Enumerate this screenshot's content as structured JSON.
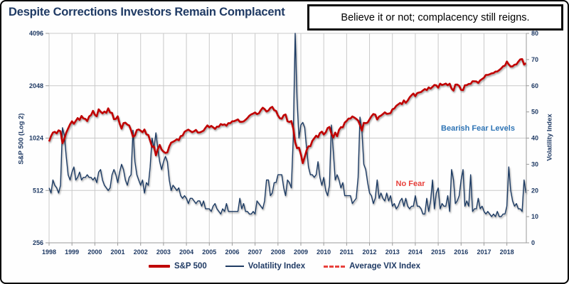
{
  "header": {
    "title": "Despite Corrections Investors Remain Complacent",
    "callout": "Believe it or not; complacency still reigns."
  },
  "annotations": {
    "bearish_label": "Bearish Fear Levels",
    "no_fear_label": "No Fear"
  },
  "legend": {
    "sp500": "S&P 500",
    "volatility": "Volatility Index",
    "average_vix": "Average VIX Index"
  },
  "colors": {
    "sp500_line": "#C00000",
    "vix_line": "#1F3B63",
    "bearish_dash": "#2E74B5",
    "avg_vix_dash": "#E8413C",
    "navy_text": "#1F3A64",
    "gridline": "#C9C9C9"
  },
  "chart_data": {
    "type": "line",
    "title": "Despite Corrections Investors Remain Complacent",
    "resolution": "monthly",
    "x_start_year": 1998,
    "x_end": 2018.85,
    "x_tick_labels": [
      "1998",
      "1999",
      "2000",
      "2001",
      "2002",
      "2003",
      "2004",
      "2005",
      "2006",
      "2007",
      "2008",
      "2009",
      "2010",
      "2011",
      "2012",
      "2013",
      "2014",
      "2015",
      "2016",
      "2017",
      "2018"
    ],
    "grid": true,
    "legend_position": "bottom",
    "left_axis": {
      "label": "S&P 500 (Log 2)",
      "scale": "log2",
      "ticks": [
        4096,
        2048,
        1024,
        512,
        256
      ],
      "range": [
        256,
        4096
      ]
    },
    "right_axis": {
      "label": "Volatility Index",
      "ticks": [
        0,
        10,
        20,
        30,
        40,
        50,
        60,
        70,
        80
      ],
      "range": [
        0,
        80
      ]
    },
    "series": [
      {
        "name": "S&P 500",
        "axis": "left",
        "color": "#C00000",
        "width": 2.6,
        "values": [
          980,
          1049,
          1102,
          1112,
          1091,
          1134,
          1121,
          957,
          1017,
          1099,
          1164,
          1229,
          1280,
          1238,
          1286,
          1335,
          1302,
          1373,
          1329,
          1320,
          1283,
          1363,
          1389,
          1469,
          1394,
          1366,
          1499,
          1452,
          1421,
          1455,
          1431,
          1518,
          1437,
          1429,
          1315,
          1320,
          1366,
          1240,
          1160,
          1249,
          1256,
          1224,
          1211,
          1134,
          1041,
          1060,
          1139,
          1148,
          1130,
          1107,
          1147,
          1077,
          1067,
          990,
          912,
          916,
          815,
          886,
          936,
          880,
          856,
          841,
          848,
          917,
          964,
          975,
          990,
          1008,
          996,
          1051,
          1058,
          1112,
          1131,
          1145,
          1126,
          1107,
          1121,
          1141,
          1102,
          1104,
          1115,
          1130,
          1174,
          1212,
          1181,
          1204,
          1181,
          1157,
          1192,
          1191,
          1234,
          1220,
          1229,
          1207,
          1249,
          1248,
          1280,
          1281,
          1295,
          1311,
          1270,
          1270,
          1277,
          1304,
          1336,
          1378,
          1401,
          1418,
          1438,
          1407,
          1421,
          1482,
          1531,
          1503,
          1455,
          1474,
          1527,
          1549,
          1481,
          1468,
          1379,
          1331,
          1323,
          1386,
          1400,
          1280,
          1267,
          1283,
          1165,
          969,
          896,
          903,
          826,
          735,
          798,
          873,
          919,
          919,
          987,
          1021,
          1057,
          1036,
          1096,
          1115,
          1074,
          1104,
          1169,
          1187,
          1089,
          1031,
          1102,
          1049,
          1141,
          1183,
          1181,
          1258,
          1286,
          1327,
          1326,
          1364,
          1345,
          1321,
          1292,
          1219,
          1131,
          1253,
          1247,
          1258,
          1312,
          1366,
          1408,
          1398,
          1310,
          1362,
          1379,
          1407,
          1441,
          1412,
          1416,
          1426,
          1498,
          1515,
          1569,
          1598,
          1631,
          1606,
          1686,
          1633,
          1682,
          1757,
          1806,
          1848,
          1783,
          1859,
          1872,
          1884,
          1924,
          1960,
          1931,
          2003,
          1972,
          2018,
          2068,
          2059,
          1995,
          2105,
          2068,
          2086,
          2107,
          2063,
          2104,
          1972,
          1920,
          2079,
          2080,
          2044,
          1940,
          1932,
          2060,
          2065,
          2097,
          2099,
          2174,
          2171,
          2168,
          2126,
          2199,
          2239,
          2279,
          2364,
          2363,
          2384,
          2412,
          2423,
          2470,
          2472,
          2519,
          2575,
          2648,
          2674,
          2824,
          2714,
          2641,
          2648,
          2705,
          2718,
          2816,
          2902,
          2914,
          2712,
          2760
        ]
      },
      {
        "name": "Volatility Index",
        "axis": "right",
        "color": "#1F3B63",
        "width": 1.4,
        "values": [
          21,
          19,
          24,
          22,
          21,
          19,
          22,
          44,
          41,
          33,
          26,
          24,
          27,
          29,
          24,
          25,
          27,
          24,
          25,
          25,
          26,
          25,
          25,
          24,
          25,
          23,
          27,
          28,
          24,
          22,
          21,
          20,
          21,
          26,
          28,
          26,
          23,
          27,
          30,
          28,
          24,
          22,
          25,
          26,
          43,
          31,
          26,
          24,
          22,
          24,
          19,
          23,
          22,
          29,
          40,
          36,
          42,
          36,
          31,
          28,
          31,
          33,
          31,
          24,
          20,
          22,
          21,
          20,
          21,
          18,
          17,
          18,
          17,
          15,
          17,
          17,
          16,
          15,
          16,
          16,
          14,
          16,
          13,
          13,
          13,
          12,
          14,
          15,
          13,
          12,
          11,
          13,
          12,
          15,
          12,
          12,
          12,
          12,
          12,
          12,
          17,
          13,
          15,
          12,
          12,
          11,
          11,
          12,
          11,
          16,
          15,
          14,
          13,
          16,
          24,
          24,
          18,
          19,
          23,
          23,
          26,
          26,
          26,
          21,
          18,
          24,
          23,
          21,
          40,
          80,
          55,
          40,
          45,
          46,
          44,
          36,
          29,
          26,
          26,
          25,
          26,
          31,
          25,
          22,
          25,
          20,
          18,
          22,
          45,
          35,
          24,
          26,
          24,
          21,
          23,
          18,
          18,
          18,
          18,
          15,
          16,
          17,
          25,
          48,
          43,
          30,
          28,
          23,
          19,
          18,
          15,
          17,
          24,
          17,
          19,
          17,
          16,
          19,
          16,
          18,
          14,
          15,
          13,
          14,
          16,
          17,
          14,
          17,
          14,
          13,
          14,
          14,
          18,
          14,
          14,
          13,
          11,
          11,
          17,
          12,
          16,
          24,
          13,
          19,
          21,
          13,
          15,
          14,
          14,
          18,
          12,
          28,
          24,
          15,
          16,
          18,
          24,
          28,
          14,
          16,
          14,
          26,
          12,
          13,
          13,
          17,
          13,
          14,
          12,
          11,
          12,
          11,
          10,
          11,
          10,
          12,
          10,
          10,
          11,
          11,
          14,
          29,
          20,
          16,
          14,
          15,
          13,
          13,
          12,
          24,
          19
        ]
      }
    ],
    "reference_lines": [
      {
        "name": "Bearish Fear Levels",
        "axis": "right",
        "value": 40,
        "color": "#2E74B5",
        "style": "dashed"
      },
      {
        "name": "Average VIX Index",
        "label": "No Fear",
        "axis": "right",
        "value": 19.5,
        "color": "#E8413C",
        "style": "dashed"
      }
    ]
  }
}
